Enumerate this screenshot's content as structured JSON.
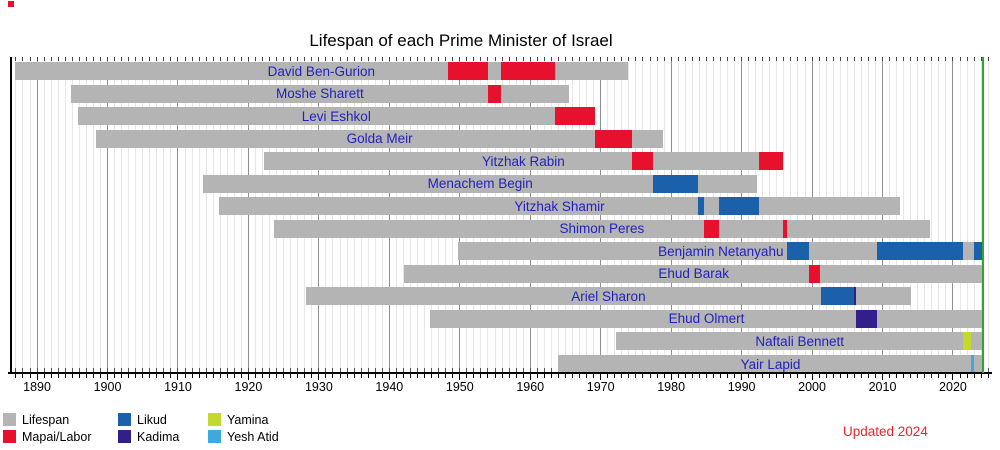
{
  "title": "Lifespan of each Prime Minister of Israel",
  "updated_note": "Updated 2024",
  "colors": {
    "lifespan": "#b4b4b4",
    "mapai_labor": "#e8112d",
    "likud": "#1a60ab",
    "kadima": "#321f8b",
    "yamina": "#c5d830",
    "yesh_atid": "#3fa8dc",
    "today_line": "#2ca82c",
    "name_text": "#2222bf",
    "updated_text": "#e8252d",
    "red_marker": "#e8112d",
    "axis": "#000000",
    "year_gridline": "#e6e6e6",
    "decade_gridline": "#8f8f8f"
  },
  "legend": {
    "items": [
      {
        "label": "Lifespan",
        "color": "lifespan"
      },
      {
        "label": "Mapai/Labor",
        "color": "mapai_labor"
      },
      {
        "label": "Likud",
        "color": "likud"
      },
      {
        "label": "Kadima",
        "color": "kadima"
      },
      {
        "label": "Yamina",
        "color": "yamina"
      },
      {
        "label": "Yesh Atid",
        "color": "yesh_atid"
      }
    ]
  },
  "chart_data": {
    "type": "bar",
    "subtype": "horizontal-timeline-gantt",
    "title": "Lifespan of each Prime Minister of Israel",
    "x_axis": {
      "min": 1886.3,
      "max": 2025.4,
      "tick_start": 1890,
      "tick_step": 10,
      "tick_end": 2020,
      "tick_labels": [
        1890,
        1900,
        1910,
        1920,
        1930,
        1940,
        1950,
        1960,
        1970,
        1980,
        1990,
        2000,
        2010,
        2020
      ],
      "minor_step": 1,
      "grid": true
    },
    "today_year": 2024.3,
    "legend_position": "bottom-left",
    "people": [
      {
        "name": "David Ben-Gurion",
        "born": 1886.8,
        "died": 1973.9,
        "terms": [
          {
            "start": 1948.37,
            "end": 1954.05,
            "party": "mapai_labor"
          },
          {
            "start": 1955.84,
            "end": 1963.47,
            "party": "mapai_labor"
          }
        ]
      },
      {
        "name": "Moshe Sharett",
        "born": 1894.8,
        "died": 1965.5,
        "terms": [
          {
            "start": 1954.05,
            "end": 1955.84,
            "party": "mapai_labor"
          }
        ]
      },
      {
        "name": "Levi Eshkol",
        "born": 1895.8,
        "died": 1969.15,
        "terms": [
          {
            "start": 1963.47,
            "end": 1969.15,
            "party": "mapai_labor"
          }
        ]
      },
      {
        "name": "Golda Meir",
        "born": 1898.35,
        "died": 1978.9,
        "terms": [
          {
            "start": 1969.2,
            "end": 1974.4,
            "party": "mapai_labor"
          }
        ]
      },
      {
        "name": "Yitzhak Rabin",
        "born": 1922.2,
        "died": 1995.85,
        "terms": [
          {
            "start": 1974.4,
            "end": 1977.45,
            "party": "mapai_labor"
          },
          {
            "start": 1992.5,
            "end": 1995.85,
            "party": "mapai_labor"
          }
        ]
      },
      {
        "name": "Menachem Begin",
        "born": 1913.6,
        "died": 1992.2,
        "terms": [
          {
            "start": 1977.45,
            "end": 1983.8,
            "party": "likud"
          }
        ]
      },
      {
        "name": "Yitzhak Shamir",
        "born": 1915.8,
        "died": 2012.5,
        "terms": [
          {
            "start": 1983.8,
            "end": 1984.7,
            "party": "likud"
          },
          {
            "start": 1986.8,
            "end": 1992.5,
            "party": "likud"
          }
        ]
      },
      {
        "name": "Shimon Peres",
        "born": 1923.6,
        "died": 2016.75,
        "terms": [
          {
            "start": 1984.7,
            "end": 1986.8,
            "party": "mapai_labor"
          },
          {
            "start": 1995.85,
            "end": 1996.45,
            "party": "mapai_labor"
          }
        ]
      },
      {
        "name": "Benjamin Netanyahu",
        "born": 1949.8,
        "died": null,
        "terms": [
          {
            "start": 1996.45,
            "end": 1999.5,
            "party": "likud"
          },
          {
            "start": 2009.25,
            "end": 2021.45,
            "party": "likud"
          },
          {
            "start": 2023.0,
            "end": 2024.3,
            "party": "likud"
          }
        ]
      },
      {
        "name": "Ehud Barak",
        "born": 1942.1,
        "died": null,
        "terms": [
          {
            "start": 1999.5,
            "end": 2001.2,
            "party": "mapai_labor"
          }
        ]
      },
      {
        "name": "Ariel Sharon",
        "born": 1928.15,
        "died": 2014.05,
        "terms": [
          {
            "start": 2001.2,
            "end": 2005.9,
            "party": "likud"
          },
          {
            "start": 2005.9,
            "end": 2006.3,
            "party": "kadima"
          }
        ]
      },
      {
        "name": "Ehud Olmert",
        "born": 1945.75,
        "died": null,
        "terms": [
          {
            "start": 2006.3,
            "end": 2009.25,
            "party": "kadima"
          }
        ]
      },
      {
        "name": "Naftali Bennett",
        "born": 1972.2,
        "died": null,
        "terms": [
          {
            "start": 2021.45,
            "end": 2022.5,
            "party": "yamina"
          }
        ]
      },
      {
        "name": "Yair Lapid",
        "born": 1963.9,
        "died": null,
        "terms": [
          {
            "start": 2022.5,
            "end": 2023.05,
            "party": "yesh_atid"
          }
        ]
      }
    ]
  }
}
